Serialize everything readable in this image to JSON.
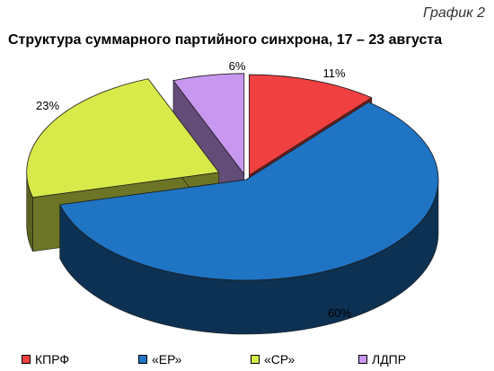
{
  "figure_label": "График 2",
  "chart_data": {
    "type": "pie",
    "title": "Структура суммарного партийного синхрона, 17 – 23 августа",
    "slices": [
      {
        "name": "КПРФ",
        "value": 11,
        "label": "11%",
        "color": "#f04040"
      },
      {
        "name": "«ЕР»",
        "value": 60,
        "label": "60%",
        "color": "#1f74c4"
      },
      {
        "name": "«СР»",
        "value": 23,
        "label": "23%",
        "color": "#d8ea4a"
      },
      {
        "name": "ЛДПР",
        "value": 6,
        "label": "6%",
        "color": "#c898f0"
      }
    ],
    "legend_position": "bottom"
  }
}
